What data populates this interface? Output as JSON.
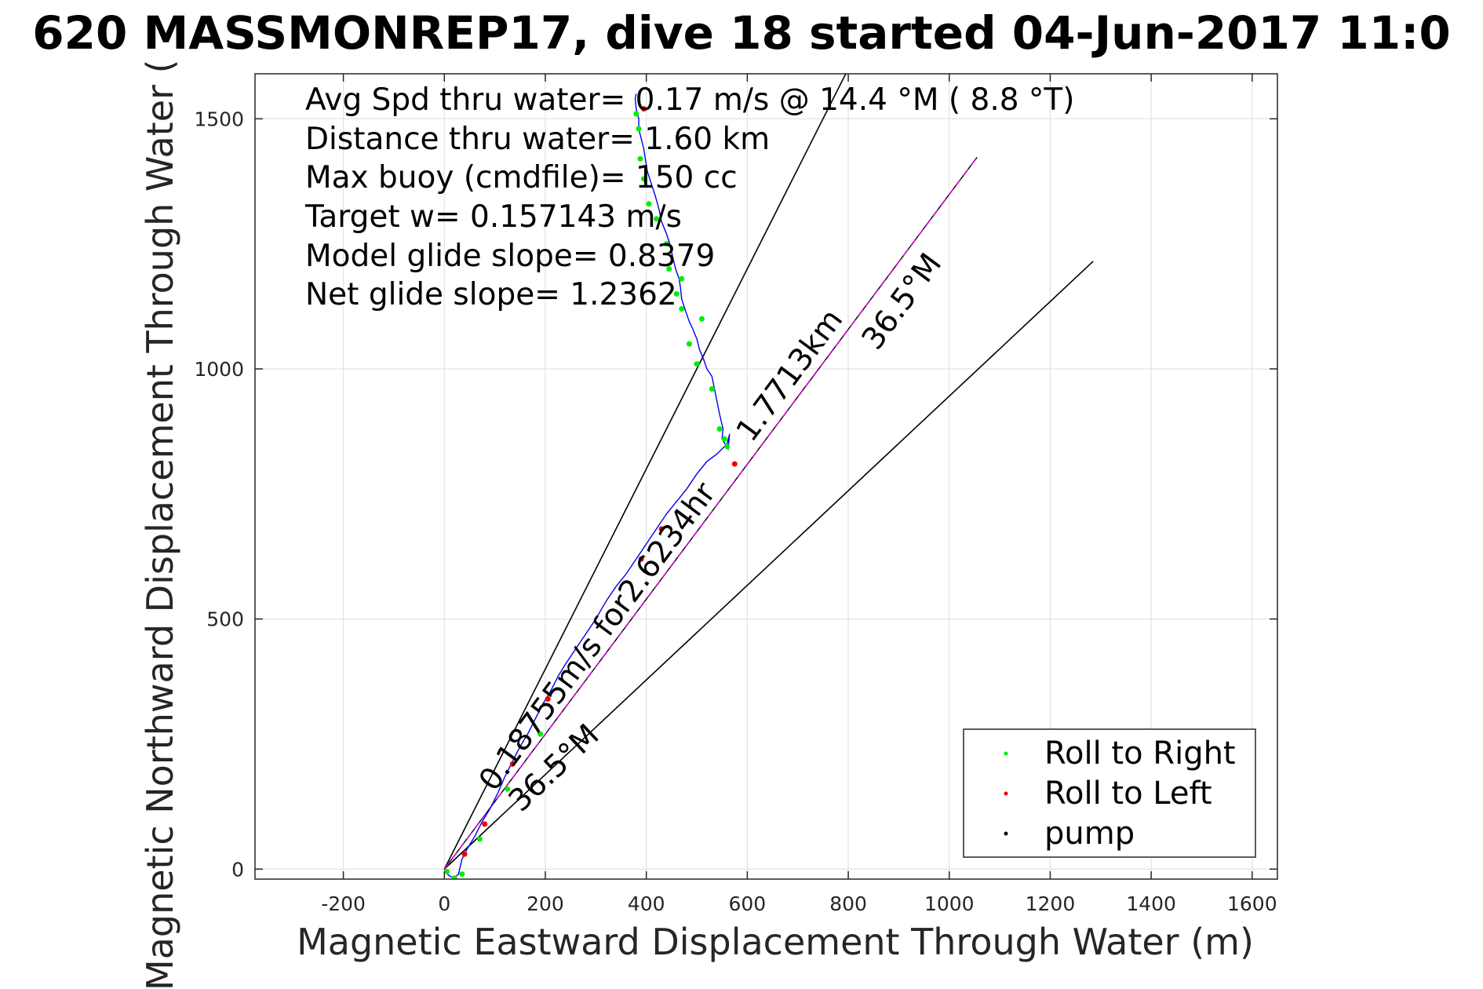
{
  "chart_data": {
    "type": "line",
    "title": "620 MASSMONREP17, dive 18 started 04-Jun-2017 11:0",
    "xlabel": "Magnetic Eastward Displacement Through Water (m)",
    "ylabel": "Magnetic Northward Displacement Through Water (",
    "xlim": [
      -375,
      1650
    ],
    "ylim": [
      -20,
      1590
    ],
    "xticks": [
      -200,
      0,
      200,
      400,
      600,
      800,
      1000,
      1200,
      1400,
      1600
    ],
    "yticks": [
      0,
      500,
      1000,
      1500
    ],
    "xtick_labels": [
      "-200",
      "0",
      "200",
      "400",
      "600",
      "800",
      "1000",
      "1200",
      "1400",
      "1600"
    ],
    "ytick_labels": [
      "0",
      "500",
      "1000",
      "1500"
    ],
    "grid": true,
    "info_lines": [
      "Avg Spd thru water=  0.17 m/s @  14.4 °M (  8.8 °T)",
      "Distance thru water=  1.60 km",
      "Max buoy (cmdfile)= 150 cc",
      "Target w= 0.157143 m/s",
      "Model glide slope= 0.8379",
      "Net glide slope= 1.2362"
    ],
    "annotations": {
      "course_heading": "36.5°M",
      "course_distance": "1.7713km",
      "speed_time": "0.18755m/s for2.6234hr",
      "cone_heading": "36.5°M"
    },
    "legend": {
      "placement": "bottom-right",
      "entries": [
        {
          "label": "Roll to Right",
          "color": "#00ee00"
        },
        {
          "label": "Roll to Left",
          "color": "#ee0000"
        },
        {
          "label": "pump",
          "color": "#000000"
        }
      ]
    },
    "series": [
      {
        "role": "glider track",
        "color": "#0000ee",
        "x": [
          0,
          8,
          18,
          28,
          35,
          45,
          60,
          75,
          90,
          105,
          120,
          135,
          150,
          165,
          180,
          195,
          210,
          225,
          240,
          260,
          280,
          300,
          320,
          340,
          360,
          380,
          400,
          420,
          440,
          460,
          480,
          500,
          520,
          540,
          560,
          565,
          562,
          556,
          550,
          552,
          545,
          540,
          535,
          530,
          520,
          515,
          505,
          500,
          492,
          485,
          478,
          470,
          468,
          465,
          458,
          452,
          448,
          440,
          430,
          425,
          418,
          410,
          402,
          398,
          395,
          390,
          385,
          385,
          380,
          378,
          380
        ],
        "y": [
          0,
          -12,
          -18,
          -10,
          20,
          40,
          65,
          95,
          120,
          150,
          185,
          215,
          245,
          270,
          300,
          330,
          355,
          385,
          410,
          440,
          470,
          500,
          535,
          565,
          590,
          620,
          650,
          680,
          710,
          735,
          760,
          790,
          815,
          830,
          850,
          870,
          840,
          850,
          860,
          880,
          910,
          935,
          960,
          985,
          1000,
          1015,
          1040,
          1060,
          1080,
          1095,
          1115,
          1140,
          1160,
          1180,
          1200,
          1225,
          1245,
          1270,
          1295,
          1320,
          1345,
          1370,
          1395,
          1420,
          1440,
          1460,
          1480,
          1500,
          1520,
          1540,
          1550
        ]
      },
      {
        "role": "Roll to Right",
        "color": "#00ee00",
        "x": [
          5,
          20,
          35,
          70,
          125,
          190,
          440,
          470,
          510,
          545,
          555,
          560,
          530,
          500,
          485,
          470,
          460,
          445,
          420,
          405,
          395,
          388,
          385,
          380
        ],
        "y": [
          -5,
          -18,
          -10,
          60,
          160,
          270,
          1250,
          1180,
          1100,
          880,
          860,
          845,
          960,
          1010,
          1050,
          1120,
          1150,
          1200,
          1300,
          1330,
          1380,
          1420,
          1480,
          1510
        ]
      },
      {
        "role": "Roll to Left",
        "color": "#ee0000",
        "x": [
          40,
          80,
          135,
          205,
          390,
          430,
          575,
          395
        ],
        "y": [
          30,
          90,
          210,
          340,
          620,
          680,
          810,
          1520
        ]
      },
      {
        "role": "course line",
        "color": "#cc00cc",
        "x": [
          0,
          1055
        ],
        "y": [
          0,
          1423
        ]
      },
      {
        "role": "cone edges",
        "color": "#000000",
        "x": [
          0,
          795,
          0,
          1285
        ],
        "y": [
          0,
          1590,
          0,
          1215
        ]
      }
    ]
  }
}
